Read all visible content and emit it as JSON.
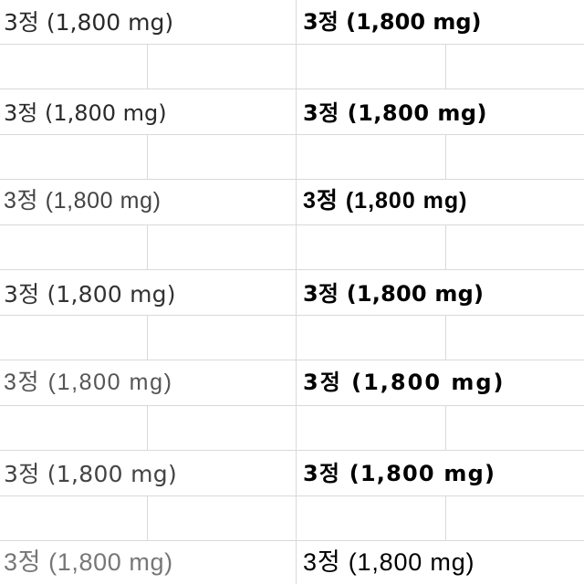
{
  "rows": [
    {
      "left": "3정 (1,800 mg)",
      "right": "3정 (1,800 mg)"
    },
    {
      "left": "3정 (1,800 mg)",
      "right": "3정 (1,800 mg)"
    },
    {
      "left": "3정 (1,800 mg)",
      "right": "3정 (1,800 mg)"
    },
    {
      "left": "3정 (1,800 mg)",
      "right": "3정 (1,800 mg)"
    },
    {
      "left": "3정 (1,800 mg)",
      "right": "3정 (1,800 mg)"
    },
    {
      "left": "3정 (1,800 mg)",
      "right": "3정 (1,800 mg)"
    },
    {
      "left": "3정 (1,800 mg)",
      "right": "3정 (1,800 mg)"
    }
  ]
}
